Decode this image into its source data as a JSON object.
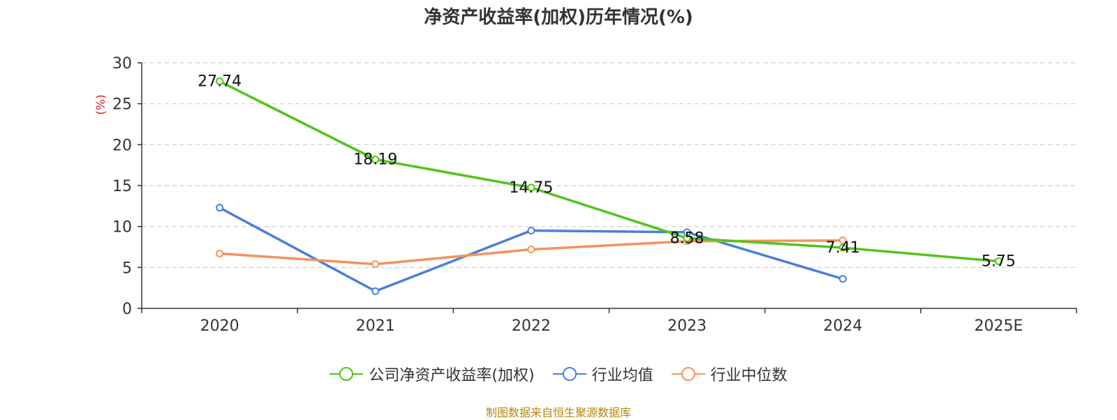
{
  "chart_data": {
    "type": "line",
    "title": "净资产收益率(加权)历年情况(%)",
    "ylabel": "(%)",
    "xlabel": "",
    "categories": [
      "2020",
      "2021",
      "2022",
      "2023",
      "2024",
      "2025E"
    ],
    "ylim": [
      0,
      30
    ],
    "yticks": [
      0,
      5,
      10,
      15,
      20,
      25,
      30
    ],
    "grid": true,
    "legend_position": "bottom",
    "series": [
      {
        "name": "公司净资产收益率(加权)",
        "color": "#52c41a",
        "values": [
          27.74,
          18.19,
          14.75,
          8.58,
          7.41,
          5.75
        ],
        "labels": [
          "27.74",
          "18.19",
          "14.75",
          "8.58",
          "7.41",
          "5.75"
        ]
      },
      {
        "name": "行业均值",
        "color": "#4a7fdb",
        "values": [
          12.3,
          2.1,
          9.5,
          9.3,
          3.6,
          null
        ]
      },
      {
        "name": "行业中位数",
        "color": "#f5925e",
        "values": [
          6.7,
          5.4,
          7.2,
          8.2,
          8.3,
          null
        ]
      }
    ]
  },
  "footer": {
    "source": "制图数据来自恒生聚源数据库"
  }
}
